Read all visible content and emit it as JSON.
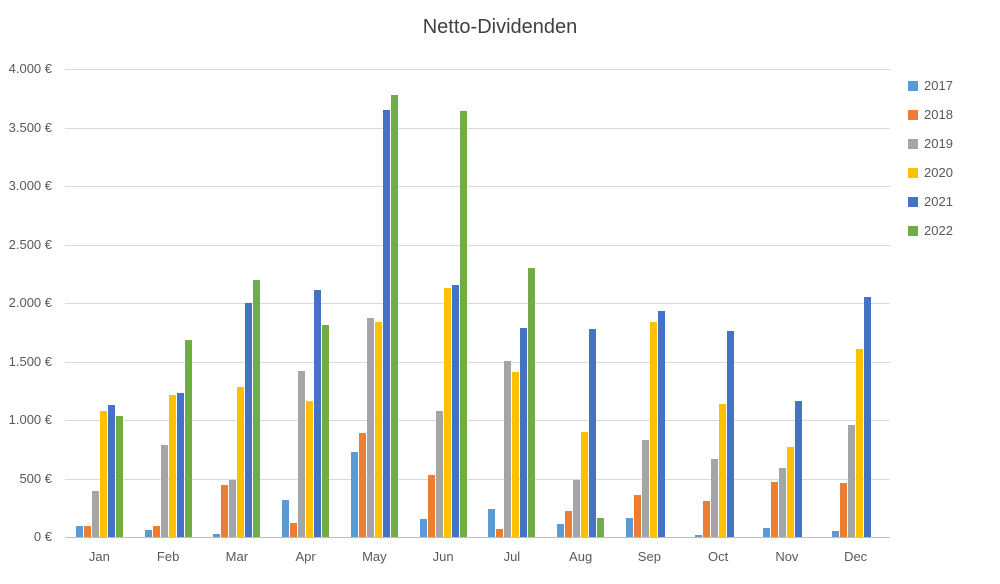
{
  "styles": {
    "background": "#FFFFFF",
    "title_color": "#404040",
    "text_color": "#595959",
    "gridline_color": "#D9D9D9",
    "axis_color": "#BFBFBF"
  },
  "chart_data": {
    "type": "bar",
    "title": "Netto-Dividenden",
    "categories": [
      "Jan",
      "Feb",
      "Mar",
      "Apr",
      "May",
      "Jun",
      "Jul",
      "Aug",
      "Sep",
      "Oct",
      "Nov",
      "Dec"
    ],
    "series": [
      {
        "name": "2017",
        "color": "#5B9BD5",
        "values": [
          90,
          60,
          25,
          315,
          730,
          150,
          240,
          110,
          160,
          20,
          75,
          50
        ]
      },
      {
        "name": "2018",
        "color": "#ED7D31",
        "values": [
          90,
          90,
          445,
          120,
          890,
          530,
          65,
          225,
          355,
          310,
          470,
          460
        ]
      },
      {
        "name": "2019",
        "color": "#A5A5A5",
        "values": [
          390,
          790,
          490,
          1420,
          1870,
          1075,
          1500,
          490,
          825,
          670,
          590,
          960
        ]
      },
      {
        "name": "2020",
        "color": "#FFC000",
        "values": [
          1080,
          1210,
          1280,
          1160,
          1840,
          2130,
          1410,
          900,
          1835,
          1140,
          770,
          1610
        ]
      },
      {
        "name": "2021",
        "color": "#4472C4",
        "values": [
          1130,
          1230,
          2000,
          2110,
          3650,
          2150,
          1790,
          1780,
          1930,
          1760,
          1160,
          2050
        ]
      },
      {
        "name": "2022",
        "color": "#70AD47",
        "values": [
          1030,
          1680,
          2200,
          1810,
          3780,
          3640,
          2300,
          160,
          0,
          0,
          0,
          0
        ]
      }
    ],
    "ylim": [
      0,
      4000
    ],
    "ytick_step": 500,
    "ytick_labels": [
      "0 €",
      "500 €",
      "1.000 €",
      "1.500 €",
      "2.000 €",
      "2.500 €",
      "3.000 €",
      "3.500 €",
      "4.000 €"
    ],
    "grid": true,
    "legend_position": "right"
  }
}
